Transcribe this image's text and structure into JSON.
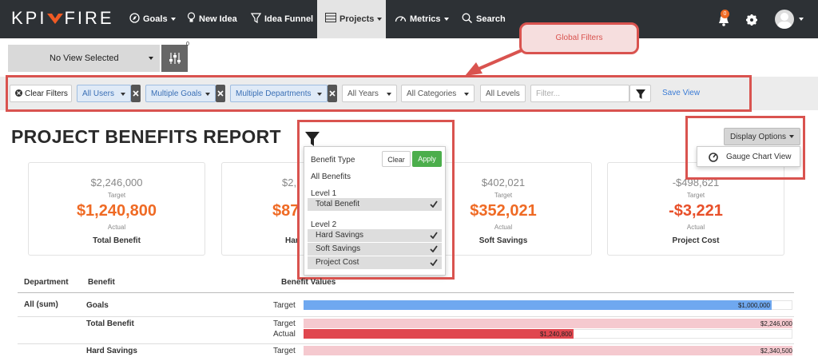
{
  "navbar": {
    "logo_left": "KPI",
    "logo_right": "FIRE",
    "items": [
      "Goals",
      "New Idea",
      "Idea Funnel",
      "Projects",
      "Metrics",
      "Search"
    ],
    "notification_count": "0"
  },
  "view_selector": {
    "label": "No View Selected",
    "filter_count": "0"
  },
  "filters": {
    "clear": "Clear Filters",
    "items": [
      "All Users",
      "Multiple Goals",
      "Multiple Departments",
      "All Years",
      "All Categories",
      "All Levels"
    ],
    "search_placeholder": "Filter...",
    "save": "Save View"
  },
  "annotation": {
    "label": "Global Filters"
  },
  "report": {
    "title": "PROJECT BENEFITS REPORT"
  },
  "cards": [
    {
      "target": "$2,246,000",
      "target_label": "Target",
      "actual": "$1,240,800",
      "actual_label": "Actual",
      "name": "Total Benefit"
    },
    {
      "target": "$2,",
      "actual": "$87",
      "name": "Har"
    },
    {
      "target": "$402,021",
      "target_label": "Target",
      "actual": "$352,021",
      "actual_label": "Actual",
      "name": "Soft Savings"
    },
    {
      "target": "-$498,621",
      "target_label": "Target",
      "actual": "-$3,221",
      "actual_label": "Actual",
      "name": "Project Cost"
    }
  ],
  "benefit_dropdown": {
    "label": "Benefit Type",
    "clear": "Clear",
    "apply": "Apply",
    "all": "All Benefits",
    "groups": [
      {
        "name": "Level 1",
        "options": [
          "Total Benefit"
        ]
      },
      {
        "name": "Level 2",
        "options": [
          "Hard Savings",
          "Soft Savings",
          "Project Cost"
        ]
      }
    ]
  },
  "display_options": {
    "button": "Display Options",
    "item": "Gauge Chart View"
  },
  "table": {
    "headers": [
      "Department",
      "Benefit",
      "Benefit Values"
    ],
    "department": "All (sum)",
    "rows": [
      {
        "benefit": "Goals",
        "lines": [
          {
            "kind": "Target",
            "value": "$1,000,000"
          }
        ]
      },
      {
        "benefit": "Total Benefit",
        "lines": [
          {
            "kind": "Target",
            "value": "$2,246,000"
          },
          {
            "kind": "Actual",
            "value": "$1,240,800"
          }
        ]
      },
      {
        "benefit": "Hard Savings",
        "lines": [
          {
            "kind": "Target",
            "value": "$2,340,500"
          }
        ]
      }
    ]
  }
}
